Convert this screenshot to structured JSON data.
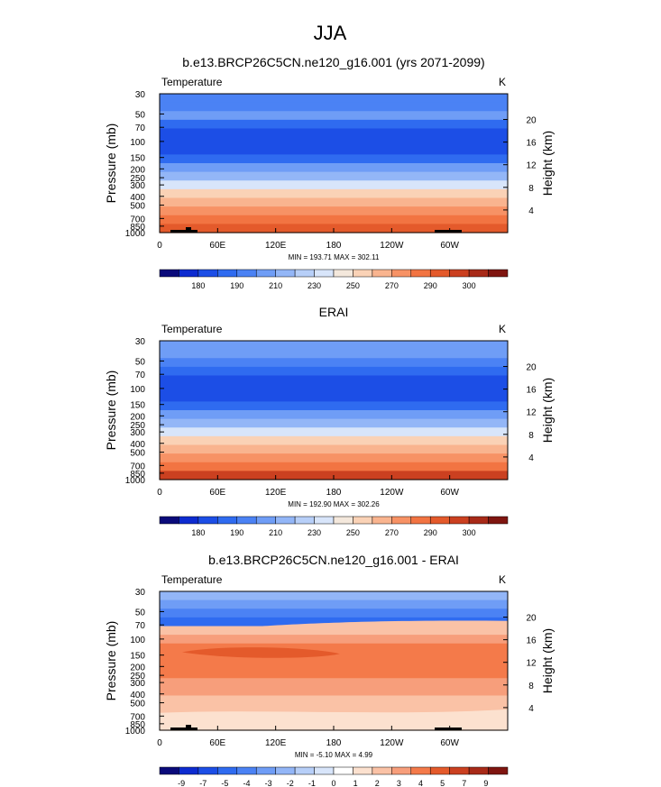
{
  "season_title": "JJA",
  "colors": {
    "temp_levels": [
      "#0a0a7a",
      "#0d2bd0",
      "#1c4ee6",
      "#2f6bf0",
      "#4b82f4",
      "#6f9df6",
      "#93b6f7",
      "#b7cff8",
      "#d8e5fa",
      "#f4e8dc",
      "#fad2b6",
      "#f9b48f",
      "#f79265",
      "#f27442",
      "#e45a2b",
      "#cb4020",
      "#a82a18",
      "#7f1510"
    ],
    "diff_levels": [
      "#0a0a7a",
      "#0d2bd0",
      "#1c4ee6",
      "#2f6bf0",
      "#4b82f4",
      "#6f9df6",
      "#93b6f7",
      "#b7cff8",
      "#d8e5fa",
      "#ffffff",
      "#fce1cf",
      "#fac2a6",
      "#f79e7b",
      "#f47a4a",
      "#e45a2b",
      "#cb4020",
      "#a82a18",
      "#7f1510"
    ]
  },
  "chart_data": [
    {
      "type": "heatmap",
      "title": "b.e13.BRCP26C5CN.ne120_g16.001 (yrs 2071-2099)",
      "left_label": "Temperature",
      "right_label": "K",
      "ylabel": "Pressure (mb)",
      "y2label": "Height (km)",
      "x_ticks": [
        "0",
        "60E",
        "120E",
        "180",
        "120W",
        "60W"
      ],
      "y_ticks": [
        "30",
        "50",
        "70",
        "100",
        "150",
        "200",
        "250",
        "300",
        "400",
        "500",
        "700",
        "850",
        "1000"
      ],
      "y2_ticks": [
        "20",
        "16",
        "12",
        "8",
        "4"
      ],
      "min_max": "MIN = 193.71   MAX = 302.11",
      "colorbar_labels": [
        "180",
        "190",
        "210",
        "230",
        "250",
        "270",
        "290",
        "300"
      ],
      "palette": "temp",
      "band_color_index": [
        4,
        4,
        5,
        3,
        2,
        2,
        2,
        3,
        5,
        6,
        8,
        10,
        11,
        12,
        13,
        14
      ],
      "topography": true
    },
    {
      "type": "heatmap",
      "title": "ERAI",
      "left_label": "Temperature",
      "right_label": "K",
      "ylabel": "Pressure (mb)",
      "y2label": "Height (km)",
      "x_ticks": [
        "0",
        "60E",
        "120E",
        "180",
        "120W",
        "60W"
      ],
      "y_ticks": [
        "30",
        "50",
        "70",
        "100",
        "150",
        "200",
        "250",
        "300",
        "400",
        "500",
        "700",
        "850",
        "1000"
      ],
      "y2_ticks": [
        "20",
        "16",
        "12",
        "8",
        "4"
      ],
      "min_max": "MIN = 192.90   MAX = 302.26",
      "colorbar_labels": [
        "180",
        "190",
        "210",
        "230",
        "250",
        "270",
        "290",
        "300"
      ],
      "palette": "temp",
      "band_color_index": [
        5,
        5,
        4,
        3,
        2,
        2,
        2,
        3,
        5,
        6,
        8,
        10,
        11,
        12,
        13,
        15
      ],
      "topography": false
    },
    {
      "type": "heatmap",
      "title": "b.e13.BRCP26C5CN.ne120_g16.001 - ERAI",
      "left_label": "Temperature",
      "right_label": "K",
      "ylabel": "Pressure (mb)",
      "y2label": "Height (km)",
      "x_ticks": [
        "0",
        "60E",
        "120E",
        "180",
        "120W",
        "60W"
      ],
      "y_ticks": [
        "30",
        "50",
        "70",
        "100",
        "150",
        "200",
        "250",
        "300",
        "400",
        "500",
        "700",
        "850",
        "1000"
      ],
      "y2_ticks": [
        "20",
        "16",
        "12",
        "8",
        "4"
      ],
      "min_max": "MIN = -5.10   MAX =   4.99",
      "colorbar_labels": [
        "-9",
        "-7",
        "-5",
        "-4",
        "-3",
        "-2",
        "-1",
        "0",
        "1",
        "2",
        "3",
        "4",
        "5",
        "7",
        "9"
      ],
      "palette": "diff",
      "band_color_index": [
        6,
        5,
        4,
        3,
        11,
        12,
        13,
        13,
        13,
        13,
        12,
        12,
        11,
        11,
        11,
        11
      ],
      "topography": true
    }
  ]
}
